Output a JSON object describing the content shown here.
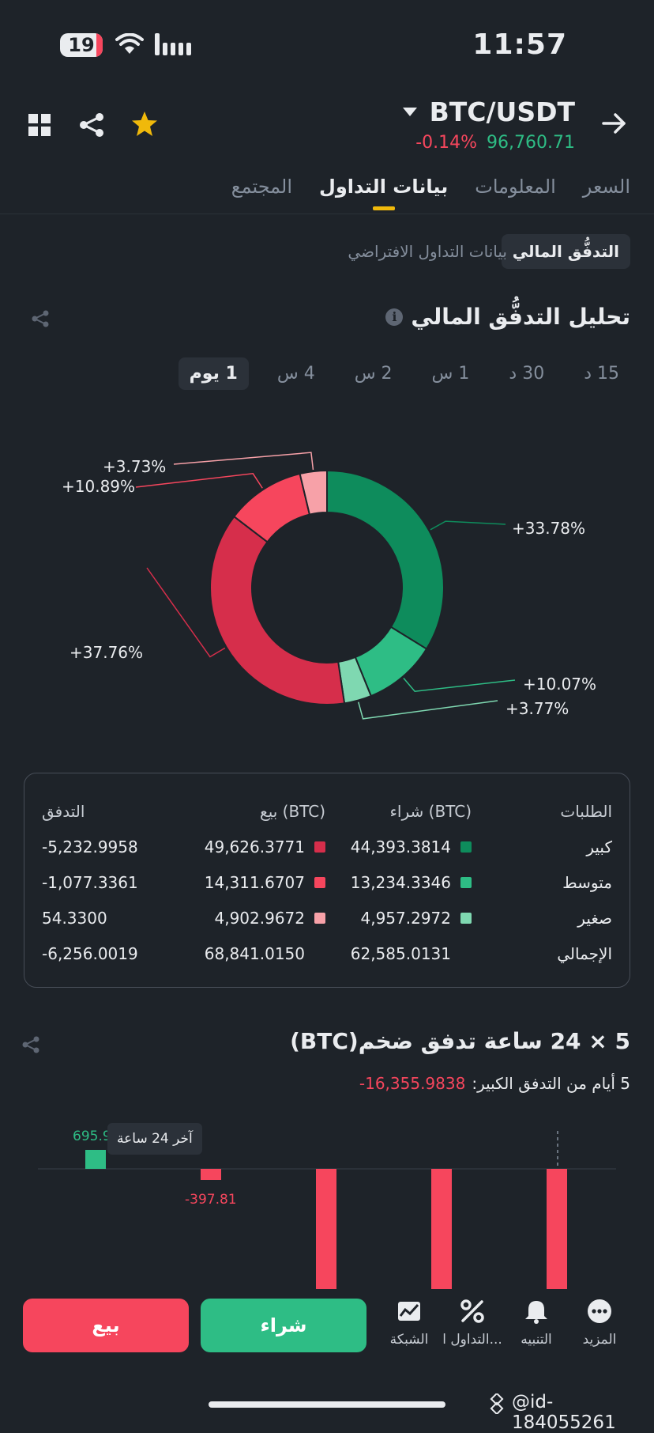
{
  "status_bar": {
    "battery": "19",
    "time": "11:57"
  },
  "header": {
    "pair": "BTC/USDT",
    "change": "-0.14%",
    "price": "96,760.71"
  },
  "tabs": [
    "السعر",
    "المعلومات",
    "بيانات التداول",
    "المجتمع"
  ],
  "subtabs": {
    "active": "التدفُّق المالي",
    "other": "بيانات التداول الافتراضي"
  },
  "section_title": "تحليل التدفُّق المالي",
  "intervals": [
    "15 د",
    "30 د",
    "1 س",
    "2 س",
    "4 س",
    "1 يوم"
  ],
  "chart_data": {
    "type": "pie",
    "donut": true,
    "slices": [
      {
        "label": "+33.78%",
        "value": 33.78,
        "color": "#0e8c5c"
      },
      {
        "label": "+10.07%",
        "value": 10.07,
        "color": "#2ebd85"
      },
      {
        "label": "+3.77%",
        "value": 3.77,
        "color": "#7fd8b1"
      },
      {
        "label": "+37.76%",
        "value": 37.76,
        "color": "#d62e4b"
      },
      {
        "label": "+10.89%",
        "value": 10.89,
        "color": "#f6465d"
      },
      {
        "label": "+3.73%",
        "value": 3.73,
        "color": "#f7a1a8"
      }
    ]
  },
  "table": {
    "headers": {
      "orders": "الطلبات",
      "buy": "شراء (BTC)",
      "sell": "بيع (BTC)",
      "flow": "التدفق"
    },
    "rows": [
      {
        "name": "كبير",
        "buy": "44,393.3814",
        "sell": "49,626.3771",
        "flow": "-5,232.9958",
        "buy_color": "#0e8c5c",
        "sell_color": "#d62e4b"
      },
      {
        "name": "متوسط",
        "buy": "13,234.3346",
        "sell": "14,311.6707",
        "flow": "-1,077.3361",
        "buy_color": "#2ebd85",
        "sell_color": "#f6465d"
      },
      {
        "name": "صغير",
        "buy": "4,957.2972",
        "sell": "4,902.9672",
        "flow": "54.3300",
        "buy_color": "#7fd8b1",
        "sell_color": "#f7a1a8"
      },
      {
        "name": "الإجمالي",
        "buy": "62,585.0131",
        "sell": "68,841.0150",
        "flow": "-6,256.0019"
      }
    ]
  },
  "whale": {
    "title": "5 × 24 ساعة تدفق ضخم(BTC)",
    "subtitle_label": "5 أيام من التدفق الكبير:",
    "subtitle_value": "-16,355.9838",
    "tooltip": "آخر 24 ساعة",
    "bar_labels": [
      "695.9",
      "-397.81"
    ]
  },
  "bottom": {
    "sell": "بيع",
    "buy": "شراء",
    "nav": [
      "الشبكة",
      "التداول ا...",
      "التنبيه",
      "المزيد"
    ]
  },
  "watermark": "@id-184055261"
}
